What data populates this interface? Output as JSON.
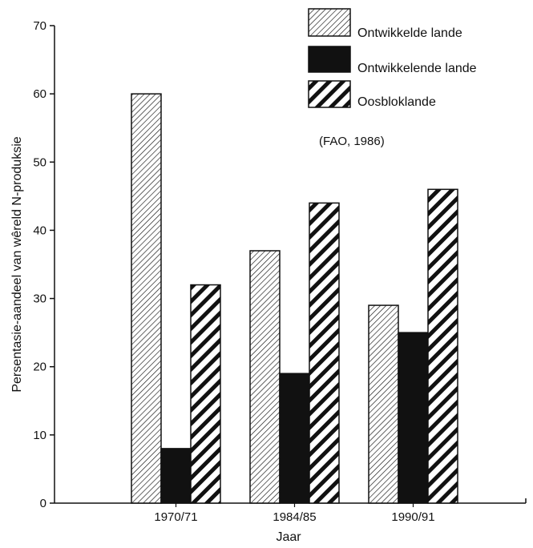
{
  "chart_data": {
    "type": "bar",
    "title": "",
    "xlabel": "Jaar",
    "ylabel": "Persentasie-aandeel van wêreld N-produksie",
    "categories": [
      "1970/71",
      "1984/85",
      "1990/91"
    ],
    "series": [
      {
        "name": "Ontwikkelde lande",
        "values": [
          60,
          37,
          29
        ],
        "pattern": "fine-diagonal-hatch",
        "color": "#111111"
      },
      {
        "name": "Ontwikkelende lande",
        "values": [
          8,
          19,
          25
        ],
        "pattern": "solid",
        "color": "#111111"
      },
      {
        "name": "Oosbloklande",
        "values": [
          32,
          44,
          46
        ],
        "pattern": "bold-diagonal-stripes",
        "color": "#111111"
      }
    ],
    "ylim": [
      0,
      70
    ],
    "yticks": [
      0,
      10,
      20,
      30,
      40,
      50,
      60,
      70
    ],
    "grid": false,
    "legend_position": "top-right",
    "annotation": "(FAO, 1986)"
  }
}
